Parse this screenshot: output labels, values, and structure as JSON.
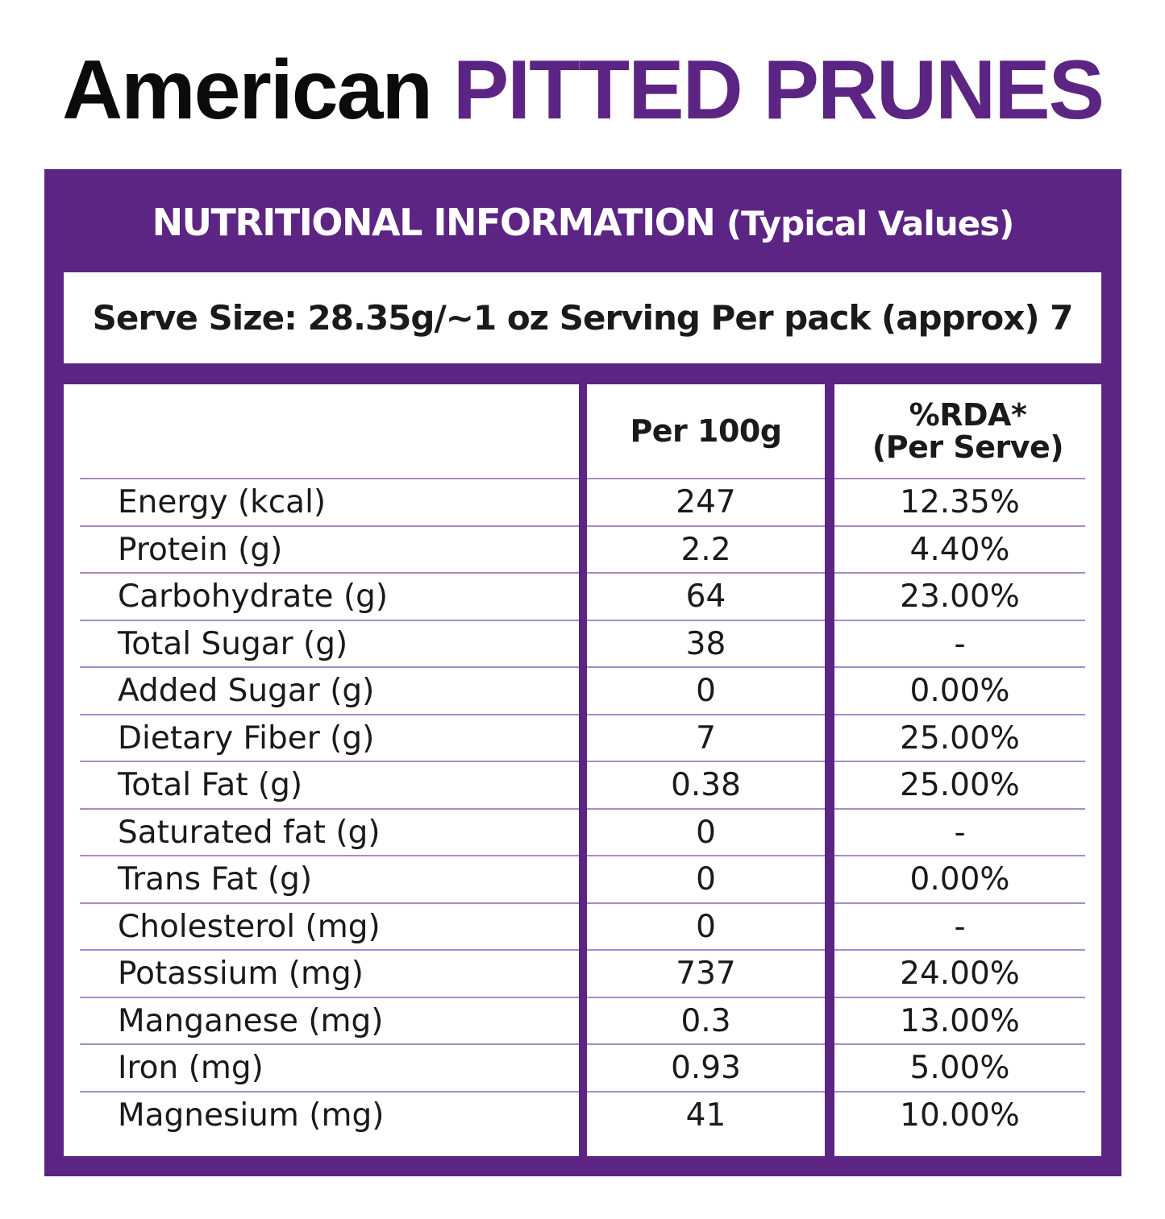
{
  "title": {
    "part1": "American",
    "part2": "PITTED PRUNES"
  },
  "panel": {
    "heading": "NUTRITIONAL INFORMATION",
    "subheading": "(Typical Values)",
    "serve_info": "Serve Size: 28.35g/~1 oz Serving Per pack (approx) 7"
  },
  "table": {
    "columns": {
      "per100": "Per 100g",
      "rda_line1": "%RDA*",
      "rda_line2": "(Per Serve)"
    },
    "rows": [
      {
        "name": "Energy (kcal)",
        "per100": "247",
        "rda": "12.35%"
      },
      {
        "name": "Protein (g)",
        "per100": "2.2",
        "rda": "4.40%"
      },
      {
        "name": "Carbohydrate (g)",
        "per100": "64",
        "rda": "23.00%"
      },
      {
        "name": "Total Sugar (g)",
        "per100": "38",
        "rda": "-"
      },
      {
        "name": "Added Sugar (g)",
        "per100": "0",
        "rda": "0.00%"
      },
      {
        "name": "Dietary Fiber (g)",
        "per100": "7",
        "rda": "25.00%"
      },
      {
        "name": "Total Fat (g)",
        "per100": "0.38",
        "rda": "25.00%"
      },
      {
        "name": "Saturated fat (g)",
        "per100": "0",
        "rda": "-"
      },
      {
        "name": "Trans Fat (g)",
        "per100": "0",
        "rda": "0.00%"
      },
      {
        "name": "Cholesterol (mg)",
        "per100": "0",
        "rda": "-"
      },
      {
        "name": "Potassium (mg)",
        "per100": "737",
        "rda": "24.00%"
      },
      {
        "name": "Manganese (mg)",
        "per100": "0.3",
        "rda": "13.00%"
      },
      {
        "name": "Iron (mg)",
        "per100": "0.93",
        "rda": "5.00%"
      },
      {
        "name": "Magnesium (mg)",
        "per100": "41",
        "rda": "10.00%"
      }
    ]
  },
  "colors": {
    "brand_purple": "#5c2483",
    "divider": "#a98bc4",
    "text": "#1a1a1a"
  }
}
